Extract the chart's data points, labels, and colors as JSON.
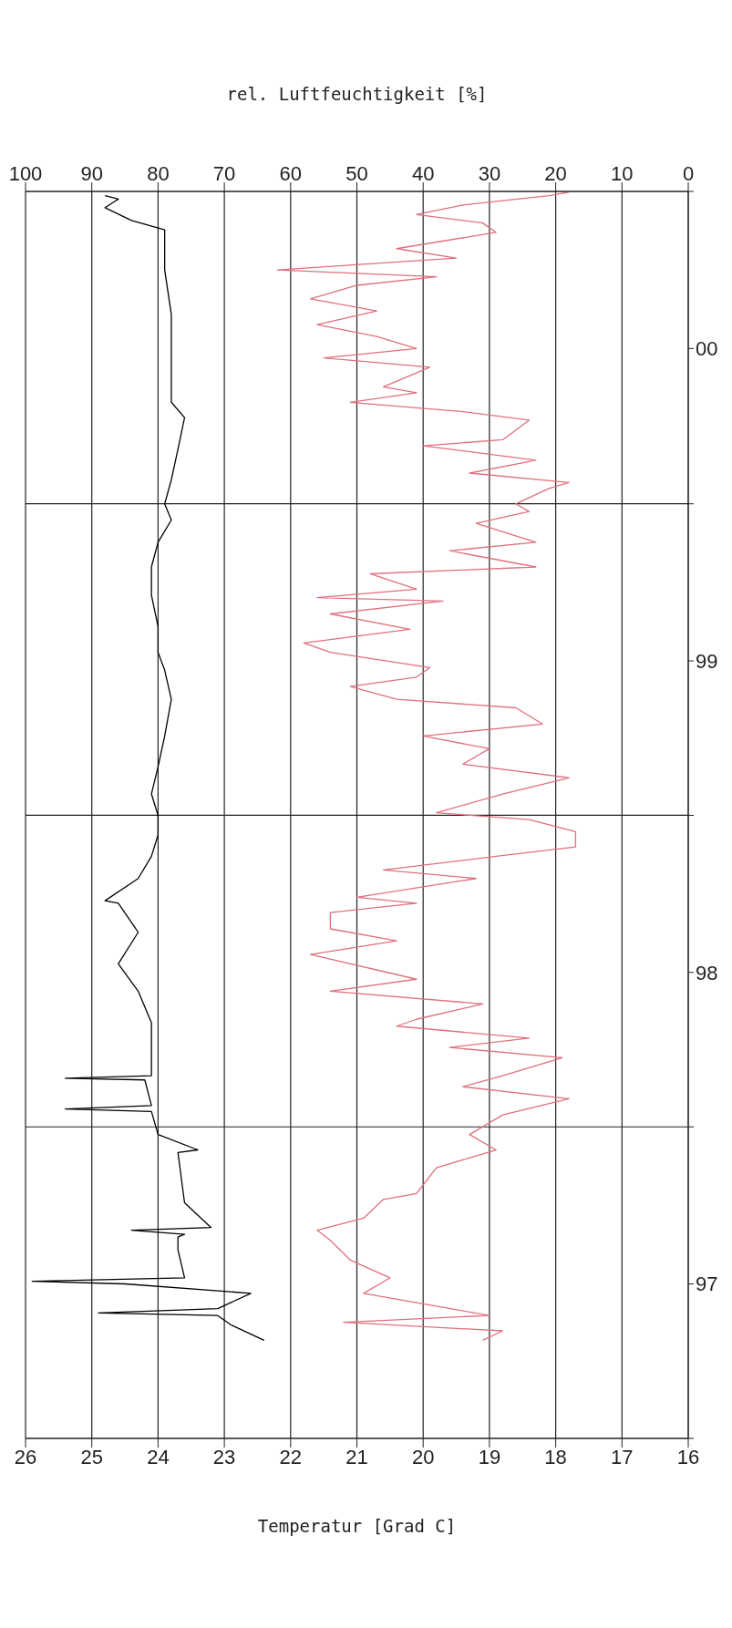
{
  "chart_data": {
    "type": "line",
    "orientation": "horizontal",
    "xlabel": "Temperatur [Grad C]",
    "x2label": "rel. Luftfeuchtigkeit [%]",
    "grid": true,
    "legend": false,
    "xlim": [
      26,
      16
    ],
    "xticks": [
      26,
      25,
      24,
      23,
      22,
      21,
      20,
      19,
      18,
      17,
      16
    ],
    "x2lim": [
      100,
      0
    ],
    "x2ticks": [
      100,
      90,
      80,
      70,
      60,
      50,
      40,
      30,
      20,
      10,
      0
    ],
    "ylim": [
      "1997-01-01",
      "2001-01-01"
    ],
    "yticks": [
      {
        "value": "1997-01-01",
        "label": null
      },
      {
        "value": "1997-07-01",
        "label": "97"
      },
      {
        "value": "1998-01-01",
        "label": null
      },
      {
        "value": "1998-07-01",
        "label": "98"
      },
      {
        "value": "1999-01-01",
        "label": null
      },
      {
        "value": "1999-07-01",
        "label": "99"
      },
      {
        "value": "2000-01-01",
        "label": null
      },
      {
        "value": "2000-07-01",
        "label": "00"
      },
      {
        "value": "2001-01-01",
        "label": null
      }
    ],
    "series": [
      {
        "color": "#000000",
        "x": [
          "1997-04-26",
          "1997-05-14",
          "1997-05-25",
          "1997-05-28",
          "1997-06-02",
          "1997-06-20",
          "1997-07-01",
          "1997-07-04",
          "1997-07-08",
          "1997-08-10",
          "1997-08-25",
          "1997-08-28",
          "1997-09-02",
          "1997-09-05",
          "1997-10-04",
          "1997-12-02",
          "1997-12-05",
          "1997-12-23",
          "1998-01-19",
          "1998-01-22",
          "1998-01-26",
          "1998-02-25",
          "1998-02-27",
          "1998-03-02",
          "1998-04-01",
          "1998-05-03",
          "1998-06-09",
          "1998-07-11",
          "1998-08-17",
          "1998-09-20",
          "1998-09-23",
          "1998-10-19",
          "1998-11-14",
          "1998-12-09",
          "1999-01-01",
          "1999-01-26",
          "1999-02-27",
          "1999-04-04",
          "1999-05-17",
          "1999-06-20",
          "1999-07-11",
          "1999-08-10",
          "1999-09-16",
          "1999-10-19",
          "1999-11-17",
          "1999-12-13",
          "2000-01-01",
          "2000-01-29",
          "2000-03-05",
          "2000-04-11",
          "2000-04-29",
          "2000-06-16",
          "2000-08-10",
          "2000-10-01",
          "2000-11-17",
          "2000-11-28",
          "2000-12-13",
          "2000-12-23",
          "2000-12-27"
        ],
        "values": [
          22.4,
          22.9,
          23.1,
          24.9,
          23.1,
          22.6,
          24.5,
          25.9,
          23.6,
          23.7,
          23.7,
          23.6,
          24.4,
          23.2,
          23.6,
          23.7,
          23.4,
          24.0,
          24.1,
          25.4,
          24.1,
          24.2,
          25.4,
          24.1,
          24.1,
          24.1,
          24.3,
          24.6,
          24.3,
          24.6,
          24.8,
          24.3,
          24.1,
          24.0,
          24.0,
          24.1,
          24.0,
          23.9,
          23.8,
          23.9,
          24.0,
          24.0,
          24.1,
          24.1,
          24.0,
          23.8,
          23.9,
          23.8,
          23.7,
          23.6,
          23.8,
          23.8,
          23.8,
          23.9,
          23.9,
          24.4,
          24.8,
          24.6,
          24.8
        ]
      },
      {
        "color": "#e0707e",
        "axis": "x2",
        "x": [
          "1997-04-26",
          "1997-05-07",
          "1997-05-17",
          "1997-05-25",
          "1997-06-09",
          "1997-06-20",
          "1997-07-08",
          "1997-07-29",
          "1997-08-21",
          "1997-09-02",
          "1997-09-16",
          "1997-10-08",
          "1997-10-15",
          "1997-11-14",
          "1997-12-05",
          "1997-12-23",
          "1998-01-15",
          "1998-02-03",
          "1998-02-17",
          "1998-03-02",
          "1998-03-23",
          "1998-04-04",
          "1998-04-15",
          "1998-04-29",
          "1998-05-07",
          "1998-05-25",
          "1998-06-09",
          "1998-06-23",
          "1998-07-22",
          "1998-08-07",
          "1998-08-21",
          "1998-09-09",
          "1998-09-20",
          "1998-09-27",
          "1998-10-19",
          "1998-10-29",
          "1998-11-14",
          "1998-11-25",
          "1998-12-13",
          "1998-12-27",
          "1999-01-04",
          "1999-01-26",
          "1999-02-14",
          "1999-03-02",
          "1999-03-20",
          "1999-04-04",
          "1999-04-18",
          "1999-05-07",
          "1999-05-17",
          "1999-06-01",
          "1999-06-12",
          "1999-06-23",
          "1999-07-11",
          "1999-07-22",
          "1999-08-07",
          "1999-08-25",
          "1999-09-09",
          "1999-09-13",
          "1999-09-23",
          "1999-10-11",
          "1999-10-19",
          "1999-11-07",
          "1999-11-17",
          "1999-12-09",
          "1999-12-23",
          "2000-01-01",
          "2000-01-19",
          "2000-01-26",
          "2000-02-06",
          "2000-02-21",
          "2000-03-09",
          "2000-03-16",
          "2000-04-08",
          "2000-04-18",
          "2000-04-29",
          "2000-05-10",
          "2000-05-17",
          "2000-06-09",
          "2000-06-20",
          "2000-07-01",
          "2000-07-15",
          "2000-07-29",
          "2000-08-14",
          "2000-08-28",
          "2000-09-13",
          "2000-09-23",
          "2000-10-01",
          "2000-10-15",
          "2000-10-26",
          "2000-11-14",
          "2000-11-25",
          "2000-12-05",
          "2000-12-16",
          "2000-12-27",
          "2000-12-31"
        ],
        "values": [
          31,
          28,
          52,
          30,
          41,
          49,
          45,
          51,
          54,
          56,
          49,
          46,
          41,
          38,
          29,
          33,
          28,
          18,
          34,
          28,
          19,
          36,
          24,
          44,
          41,
          31,
          54,
          41,
          57,
          44,
          54,
          54,
          41,
          50,
          32,
          46,
          29,
          17,
          17,
          24,
          38,
          28,
          18,
          34,
          30,
          40,
          22,
          26,
          44,
          51,
          41,
          39,
          54,
          58,
          42,
          54,
          37,
          56,
          41,
          48,
          23,
          36,
          23,
          32,
          24,
          26,
          21,
          18,
          33,
          23,
          40,
          28,
          24,
          34,
          51,
          41,
          46,
          39,
          55,
          41,
          47,
          56,
          47,
          57,
          50,
          38,
          62,
          35,
          44,
          29,
          31,
          41,
          34,
          21,
          18
        ]
      }
    ]
  }
}
